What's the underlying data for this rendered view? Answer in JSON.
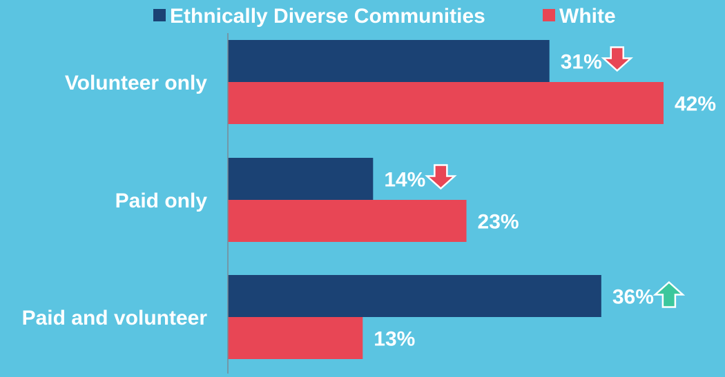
{
  "chart_data": {
    "type": "bar",
    "orientation": "horizontal",
    "categories": [
      "Volunteer only",
      "Paid only",
      "Paid and volunteer"
    ],
    "series": [
      {
        "name": "Ethnically Diverse Communities",
        "values": [
          31,
          14,
          36
        ],
        "color": "#1b4274"
      },
      {
        "name": "White",
        "values": [
          42,
          23,
          13
        ],
        "color": "#e84655"
      }
    ],
    "value_suffix": "%",
    "xlim": [
      0,
      43
    ],
    "indicators": [
      {
        "category": "Volunteer only",
        "series": "Ethnically Diverse Communities",
        "direction": "down",
        "color": "#e84655",
        "icon": "arrow-down-icon"
      },
      {
        "category": "Paid only",
        "series": "Ethnically Diverse Communities",
        "direction": "down",
        "color": "#e84655",
        "icon": "arrow-down-icon"
      },
      {
        "category": "Paid and volunteer",
        "series": "Ethnically Diverse Communities",
        "direction": "up",
        "color": "#3cc79c",
        "icon": "arrow-up-icon"
      }
    ],
    "legend": "top-center",
    "grid": false,
    "background": "#5bc4e1"
  }
}
